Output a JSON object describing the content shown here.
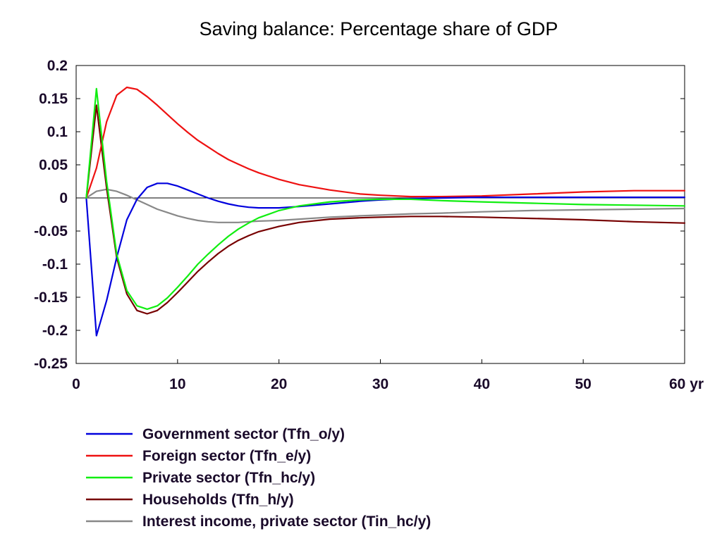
{
  "chart_data": {
    "type": "line",
    "title": "Saving balance: Percentage share of GDP",
    "xlabel": "",
    "ylabel": "",
    "xlim": [
      0,
      60
    ],
    "ylim": [
      -0.25,
      0.2
    ],
    "x_ticks": [
      {
        "value": 0,
        "label": "0"
      },
      {
        "value": 10,
        "label": "10"
      },
      {
        "value": 20,
        "label": "20"
      },
      {
        "value": 30,
        "label": "30"
      },
      {
        "value": 40,
        "label": "40"
      },
      {
        "value": 50,
        "label": "50"
      },
      {
        "value": 60,
        "label": "60 yr"
      }
    ],
    "y_ticks": [
      {
        "value": 0.2,
        "label": "0.2"
      },
      {
        "value": 0.15,
        "label": "0.15"
      },
      {
        "value": 0.1,
        "label": "0.1"
      },
      {
        "value": 0.05,
        "label": "0.05"
      },
      {
        "value": 0,
        "label": "0"
      },
      {
        "value": -0.05,
        "label": "-0.05"
      },
      {
        "value": -0.1,
        "label": "-0.1"
      },
      {
        "value": -0.15,
        "label": "-0.15"
      },
      {
        "value": -0.2,
        "label": "-0.2"
      },
      {
        "value": -0.25,
        "label": "-0.25"
      }
    ],
    "grid": false,
    "zero_line": true,
    "legend_position": "bottom",
    "series": [
      {
        "name": "Government sector (Tfn_o/y)",
        "color": "#0000dd",
        "points": [
          [
            1,
            0
          ],
          [
            2,
            -0.208
          ],
          [
            3,
            -0.155
          ],
          [
            4,
            -0.09
          ],
          [
            5,
            -0.033
          ],
          [
            6,
            -0.002
          ],
          [
            7,
            0.016
          ],
          [
            8,
            0.022
          ],
          [
            9,
            0.022
          ],
          [
            10,
            0.018
          ],
          [
            11,
            0.012
          ],
          [
            12,
            0.006
          ],
          [
            13,
            0.0
          ],
          [
            14,
            -0.005
          ],
          [
            15,
            -0.009
          ],
          [
            16,
            -0.012
          ],
          [
            17,
            -0.014
          ],
          [
            18,
            -0.015
          ],
          [
            20,
            -0.015
          ],
          [
            22,
            -0.013
          ],
          [
            25,
            -0.009
          ],
          [
            28,
            -0.005
          ],
          [
            30,
            -0.003
          ],
          [
            33,
            -0.001
          ],
          [
            36,
            0.0
          ],
          [
            40,
            0.001
          ],
          [
            45,
            0.001
          ],
          [
            50,
            0.001
          ],
          [
            55,
            0.001
          ],
          [
            60,
            0.001
          ]
        ]
      },
      {
        "name": "Foreign sector (Tfn_e/y)",
        "color": "#ee1111",
        "points": [
          [
            1,
            0
          ],
          [
            2,
            0.045
          ],
          [
            3,
            0.115
          ],
          [
            4,
            0.155
          ],
          [
            5,
            0.167
          ],
          [
            6,
            0.164
          ],
          [
            7,
            0.153
          ],
          [
            8,
            0.14
          ],
          [
            9,
            0.126
          ],
          [
            10,
            0.112
          ],
          [
            11,
            0.099
          ],
          [
            12,
            0.087
          ],
          [
            13,
            0.077
          ],
          [
            14,
            0.067
          ],
          [
            15,
            0.058
          ],
          [
            16,
            0.051
          ],
          [
            17,
            0.044
          ],
          [
            18,
            0.038
          ],
          [
            20,
            0.028
          ],
          [
            22,
            0.02
          ],
          [
            25,
            0.012
          ],
          [
            28,
            0.006
          ],
          [
            30,
            0.004
          ],
          [
            33,
            0.002
          ],
          [
            36,
            0.002
          ],
          [
            40,
            0.003
          ],
          [
            45,
            0.006
          ],
          [
            50,
            0.009
          ],
          [
            55,
            0.011
          ],
          [
            60,
            0.011
          ]
        ]
      },
      {
        "name": "Private sector (Tfn_hc/y)",
        "color": "#11ee11",
        "points": [
          [
            1,
            0
          ],
          [
            2,
            0.165
          ],
          [
            3,
            0.025
          ],
          [
            4,
            -0.085
          ],
          [
            5,
            -0.14
          ],
          [
            6,
            -0.163
          ],
          [
            7,
            -0.168
          ],
          [
            8,
            -0.163
          ],
          [
            9,
            -0.151
          ],
          [
            10,
            -0.135
          ],
          [
            11,
            -0.118
          ],
          [
            12,
            -0.1
          ],
          [
            13,
            -0.085
          ],
          [
            14,
            -0.071
          ],
          [
            15,
            -0.058
          ],
          [
            16,
            -0.047
          ],
          [
            17,
            -0.038
          ],
          [
            18,
            -0.03
          ],
          [
            20,
            -0.019
          ],
          [
            22,
            -0.012
          ],
          [
            25,
            -0.006
          ],
          [
            28,
            -0.003
          ],
          [
            30,
            -0.002
          ],
          [
            33,
            -0.002
          ],
          [
            36,
            -0.004
          ],
          [
            40,
            -0.006
          ],
          [
            45,
            -0.008
          ],
          [
            50,
            -0.01
          ],
          [
            55,
            -0.011
          ],
          [
            60,
            -0.012
          ]
        ]
      },
      {
        "name": "Households (Tfn_h/y)",
        "color": "#770000",
        "points": [
          [
            1,
            0
          ],
          [
            2,
            0.14
          ],
          [
            3,
            0.015
          ],
          [
            4,
            -0.09
          ],
          [
            5,
            -0.145
          ],
          [
            6,
            -0.17
          ],
          [
            7,
            -0.175
          ],
          [
            8,
            -0.17
          ],
          [
            9,
            -0.158
          ],
          [
            10,
            -0.143
          ],
          [
            11,
            -0.127
          ],
          [
            12,
            -0.111
          ],
          [
            13,
            -0.097
          ],
          [
            14,
            -0.084
          ],
          [
            15,
            -0.073
          ],
          [
            16,
            -0.064
          ],
          [
            17,
            -0.057
          ],
          [
            18,
            -0.051
          ],
          [
            20,
            -0.043
          ],
          [
            22,
            -0.037
          ],
          [
            25,
            -0.032
          ],
          [
            28,
            -0.03
          ],
          [
            30,
            -0.029
          ],
          [
            33,
            -0.028
          ],
          [
            36,
            -0.028
          ],
          [
            40,
            -0.029
          ],
          [
            45,
            -0.031
          ],
          [
            50,
            -0.033
          ],
          [
            55,
            -0.036
          ],
          [
            60,
            -0.038
          ]
        ]
      },
      {
        "name": "Interest income, private sector (Tin_hc/y)",
        "color": "#888888",
        "points": [
          [
            1,
            0
          ],
          [
            2,
            0.01
          ],
          [
            3,
            0.013
          ],
          [
            4,
            0.01
          ],
          [
            5,
            0.004
          ],
          [
            6,
            -0.003
          ],
          [
            7,
            -0.01
          ],
          [
            8,
            -0.017
          ],
          [
            9,
            -0.022
          ],
          [
            10,
            -0.027
          ],
          [
            11,
            -0.031
          ],
          [
            12,
            -0.034
          ],
          [
            13,
            -0.036
          ],
          [
            14,
            -0.037
          ],
          [
            15,
            -0.037
          ],
          [
            16,
            -0.037
          ],
          [
            17,
            -0.036
          ],
          [
            18,
            -0.035
          ],
          [
            20,
            -0.034
          ],
          [
            22,
            -0.032
          ],
          [
            25,
            -0.029
          ],
          [
            28,
            -0.027
          ],
          [
            30,
            -0.026
          ],
          [
            33,
            -0.024
          ],
          [
            36,
            -0.023
          ],
          [
            40,
            -0.021
          ],
          [
            45,
            -0.019
          ],
          [
            50,
            -0.018
          ],
          [
            55,
            -0.017
          ],
          [
            60,
            -0.016
          ]
        ]
      }
    ]
  }
}
